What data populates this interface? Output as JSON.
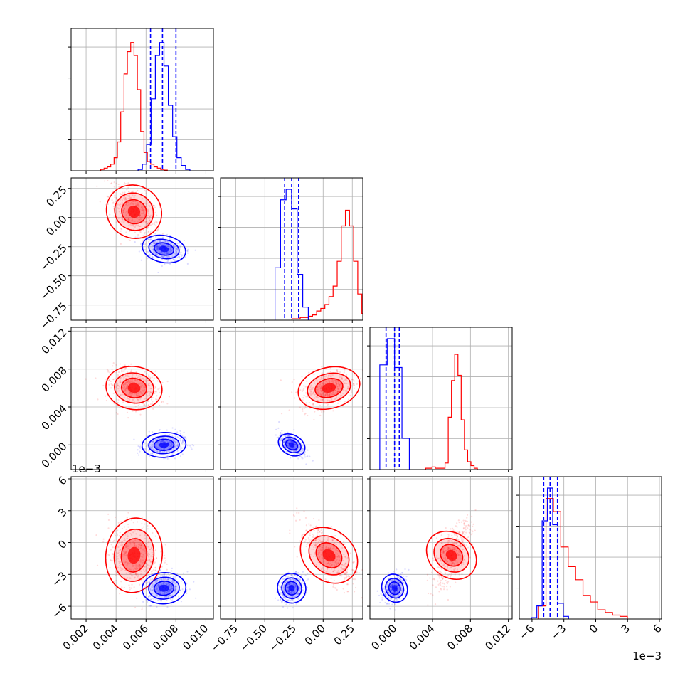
{
  "chart_data": {
    "type": "corner",
    "colors": {
      "series_a": "#ff0000",
      "series_b": "#0000ff",
      "grid": "#b0b0b0"
    },
    "series": [
      {
        "color": "red",
        "means": [
          0.0052,
          0.05,
          0.006,
          -0.0012
        ],
        "marginals": [
          [
            0.01,
            0.02,
            0.03,
            0.05,
            0.1,
            0.22,
            0.45,
            0.74,
            0.91,
            0.98,
            0.88,
            0.62,
            0.3,
            0.14,
            0.07,
            0.05,
            0.03,
            0.02,
            0.01,
            0.005
          ],
          [
            0.01,
            0.01,
            0.02,
            0.02,
            0.03,
            0.04,
            0.07,
            0.09,
            0.12,
            0.18,
            0.26,
            0.45,
            0.72,
            0.84,
            0.72,
            0.45,
            0.2,
            0.05
          ],
          [
            0.01,
            0.01,
            0.02,
            0.01,
            0.01,
            0.01,
            0.05,
            0.4,
            0.68,
            0.88,
            0.72,
            0.38,
            0.15,
            0.06,
            0.03,
            0.01
          ],
          [
            0.1,
            0.92,
            0.82,
            0.55,
            0.4,
            0.3,
            0.18,
            0.13,
            0.07,
            0.05,
            0.03,
            0.02
          ]
        ]
      },
      {
        "color": "blue",
        "means": [
          0.0072,
          -0.27,
          0.0,
          -0.0043
        ],
        "marginals": [
          [
            0.01,
            0.05,
            0.2,
            0.55,
            0.88,
            0.98,
            0.8,
            0.5,
            0.26,
            0.1,
            0.04,
            0.01
          ],
          [
            0.4,
            0.92,
            1.0,
            0.85,
            0.35,
            0.1
          ],
          [
            0.8,
            1.0,
            0.78,
            0.24
          ],
          [
            0.01,
            0.1,
            0.75,
            1.0,
            0.72,
            0.12,
            0.02
          ]
        ]
      }
    ],
    "quantile_lines": [
      [
        0.0063,
        0.0071,
        0.008
      ],
      [
        -0.33,
        -0.27,
        -0.21
      ],
      [
        -0.0009,
        0.0,
        0.0005
      ],
      [
        -0.0049,
        -0.0043,
        -0.0036
      ]
    ],
    "axes": [
      {
        "range": [
          0.001,
          0.0105
        ],
        "ticks": [
          "0.002",
          "0.004",
          "0.006",
          "0.008",
          "0.010"
        ],
        "tick_values": [
          0.002,
          0.004,
          0.006,
          0.008,
          0.01
        ]
      },
      {
        "range": [
          -0.88,
          0.34
        ],
        "ticks": [
          "−0.75",
          "−0.50",
          "−0.25",
          "0.00",
          "0.25"
        ],
        "tick_values": [
          -0.75,
          -0.5,
          -0.25,
          0,
          0.25
        ]
      },
      {
        "range": [
          -0.0026,
          0.0124
        ],
        "ticks": [
          "0.000",
          "0.004",
          "0.008",
          "0.012"
        ],
        "tick_values": [
          0,
          0.004,
          0.008,
          0.012
        ]
      },
      {
        "range": [
          -0.0072,
          0.0062
        ],
        "ticks": [
          "−6",
          "−3",
          "0",
          "3",
          "6"
        ],
        "tick_values": [
          -0.006,
          -0.003,
          0,
          0.003,
          0.006
        ]
      }
    ],
    "offset_labels": {
      "row_axis_4": "1e−3",
      "col_axis_4": "1e−3"
    }
  }
}
